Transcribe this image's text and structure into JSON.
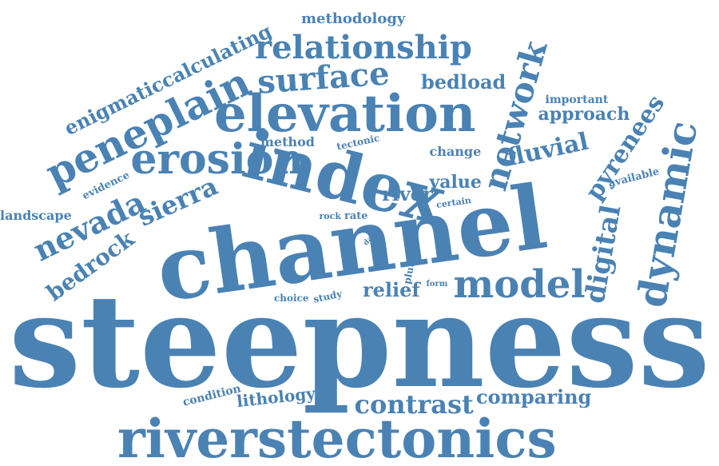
{
  "color": "#4a82b4",
  "words": [
    {
      "id": "steepness",
      "text": "steepness"
    },
    {
      "id": "channel",
      "text": "channel"
    },
    {
      "id": "riverstectonics",
      "text": "riverstectonics"
    },
    {
      "id": "index",
      "text": "index"
    },
    {
      "id": "elevation",
      "text": "elevation"
    },
    {
      "id": "erosion",
      "text": "erosion"
    },
    {
      "id": "peneplain",
      "text": "peneplain"
    },
    {
      "id": "relationship",
      "text": "relationship"
    },
    {
      "id": "surface",
      "text": "surface"
    },
    {
      "id": "network",
      "text": "network"
    },
    {
      "id": "model",
      "text": "model"
    },
    {
      "id": "dynamic",
      "text": "dynamic"
    },
    {
      "id": "nevada",
      "text": "nevada"
    },
    {
      "id": "sierra",
      "text": "sierra"
    },
    {
      "id": "bedrock",
      "text": "bedrock"
    },
    {
      "id": "enigmaticcalculating",
      "text": "enigmaticcalculating"
    },
    {
      "id": "methodology",
      "text": "methodology"
    },
    {
      "id": "bedload",
      "text": "bedload"
    },
    {
      "id": "fluvial",
      "text": "fluvial"
    },
    {
      "id": "pyrenees",
      "text": "pyrenees"
    },
    {
      "id": "digital",
      "text": "digital"
    },
    {
      "id": "important",
      "text": "important"
    },
    {
      "id": "approach",
      "text": "approach"
    },
    {
      "id": "contrast",
      "text": "contrast"
    },
    {
      "id": "comparing",
      "text": "comparing"
    },
    {
      "id": "river",
      "text": "river"
    },
    {
      "id": "value",
      "text": "value"
    },
    {
      "id": "relief",
      "text": "relief"
    },
    {
      "id": "lithology",
      "text": "lithology"
    },
    {
      "id": "condition",
      "text": "condition"
    },
    {
      "id": "change",
      "text": "change"
    },
    {
      "id": "method",
      "text": "method"
    },
    {
      "id": "tectonic",
      "text": "tectonic"
    },
    {
      "id": "landscape",
      "text": "landscape"
    },
    {
      "id": "evidence",
      "text": "evidence"
    },
    {
      "id": "available",
      "text": "available"
    },
    {
      "id": "certain",
      "text": "certain"
    },
    {
      "id": "rock",
      "text": "rock"
    },
    {
      "id": "rate",
      "text": "rate"
    },
    {
      "id": "data",
      "text": "data"
    },
    {
      "id": "plutonic",
      "text": "plutonic"
    },
    {
      "id": "form",
      "text": "form"
    },
    {
      "id": "choice",
      "text": "choice"
    },
    {
      "id": "study",
      "text": "study"
    }
  ]
}
